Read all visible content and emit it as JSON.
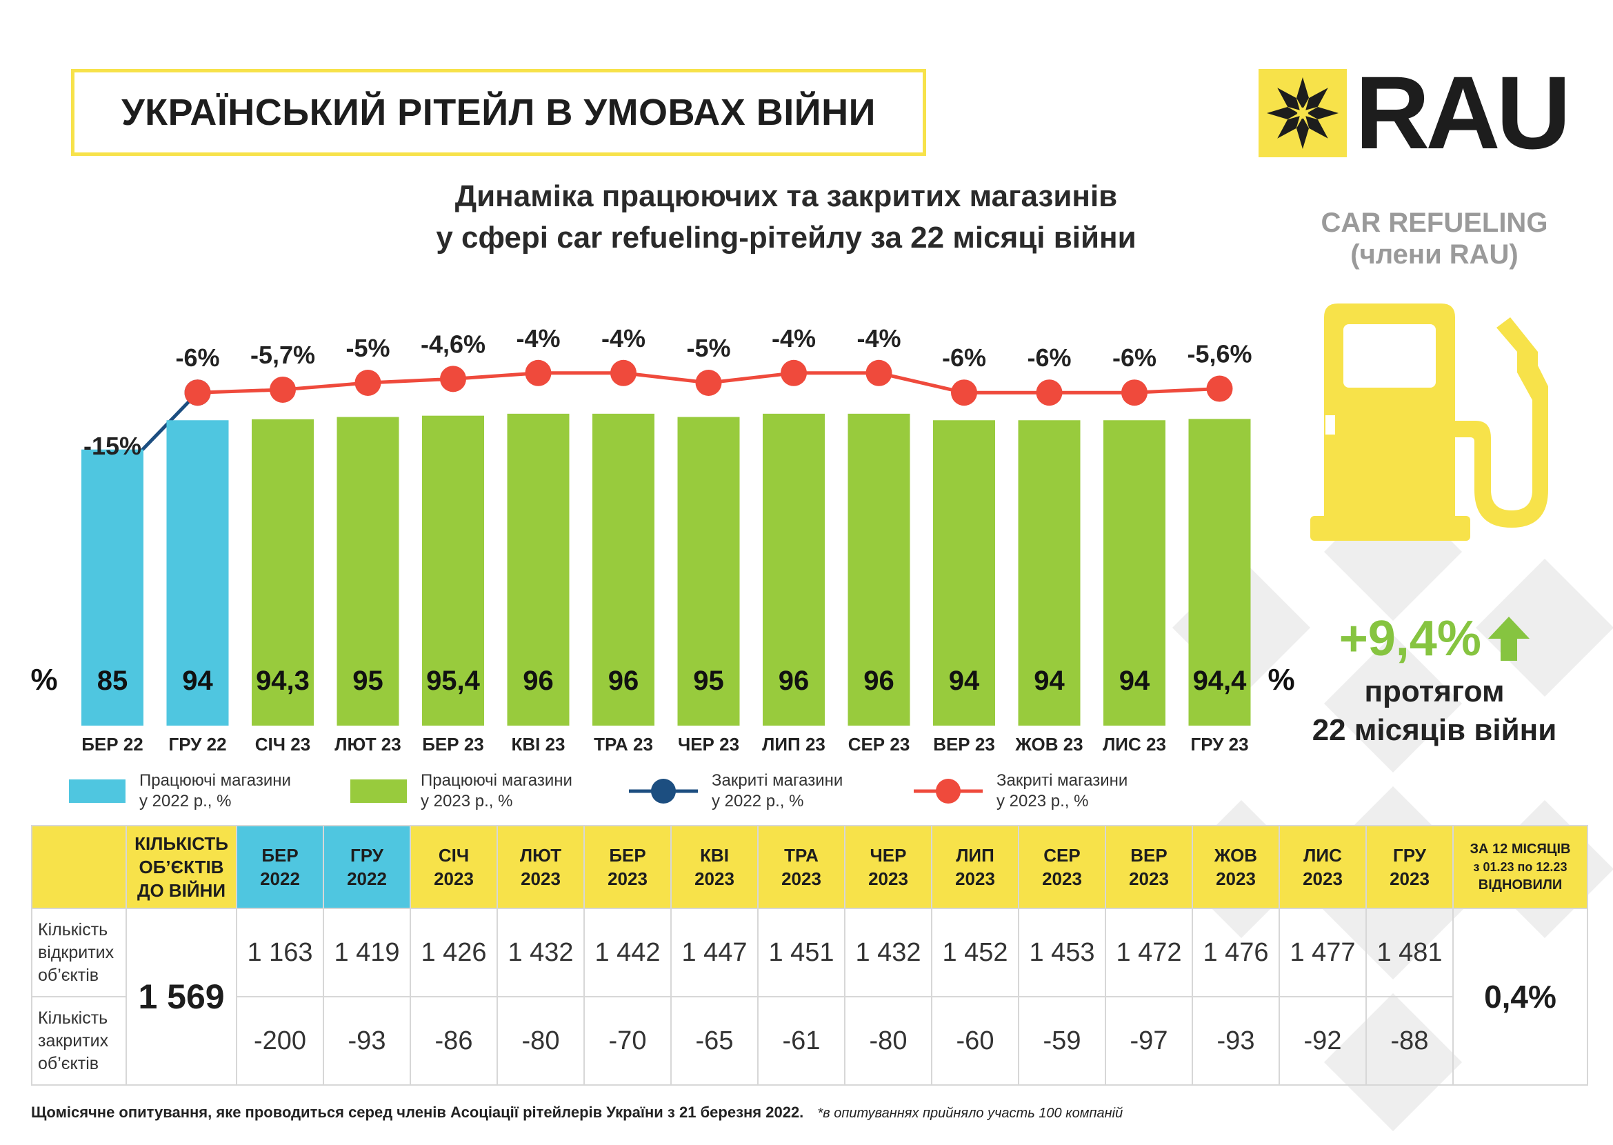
{
  "header": {
    "title": "УКРАЇНСЬКИЙ РІТЕЙЛ В УМОВАХ ВІЙНИ",
    "logo_text": "RAU"
  },
  "subtitle_line1": "Динаміка працюючих та закритих магазинів",
  "subtitle_line2": "у сфері car refueling-рітейлу за 22 місяці війни",
  "segment": {
    "line1": "CAR REFUELING",
    "line2": "(члени RAU)"
  },
  "growth": {
    "value": "+9,4%",
    "caption_line1": "протягом",
    "caption_line2": "22 місяців війни"
  },
  "colors": {
    "yellow": "#f7e24a",
    "blue_bar": "#4fc6e0",
    "green_bar": "#98cb3d",
    "navy_line": "#1c4e80",
    "red_line": "#ef4a3c",
    "growth_green": "#86c440"
  },
  "chart_data": {
    "type": "bar",
    "unit_label": "%",
    "categories": [
      "БЕР 22",
      "ГРУ 22",
      "СІЧ 23",
      "ЛЮТ 23",
      "БЕР 23",
      "КВІ 23",
      "ТРА 23",
      "ЧЕР 23",
      "ЛИП 23",
      "СЕР 23",
      "ВЕР 23",
      "ЖОВ 23",
      "ЛИС 23",
      "ГРУ 23"
    ],
    "bar_labels": [
      "85",
      "94",
      "94,3",
      "95",
      "95,4",
      "96",
      "96",
      "95",
      "96",
      "96",
      "94",
      "94",
      "94",
      "94,4"
    ],
    "series": [
      {
        "name": "Працюючі магазини у 2022 р., %",
        "kind": "bar",
        "color": "#4fc6e0",
        "start": 0,
        "values": [
          85,
          94,
          null,
          null,
          null,
          null,
          null,
          null,
          null,
          null,
          null,
          null,
          null,
          null
        ]
      },
      {
        "name": "Працюючі магазини у 2023 р., %",
        "kind": "bar",
        "color": "#98cb3d",
        "start": 2,
        "values": [
          null,
          null,
          94.3,
          95,
          95.4,
          96,
          96,
          95,
          96,
          96,
          94,
          94,
          94,
          94.4
        ]
      },
      {
        "name": "Закриті магазини у 2022 р., %",
        "kind": "line",
        "color": "#1c4e80",
        "values": [
          -15,
          -6,
          null,
          null,
          null,
          null,
          null,
          null,
          null,
          null,
          null,
          null,
          null,
          null
        ]
      },
      {
        "name": "Закриті магазини у 2023 р., %",
        "kind": "line",
        "color": "#ef4a3c",
        "values": [
          null,
          -6,
          -5.7,
          -5,
          -4.6,
          -4,
          -4,
          -5,
          -4,
          -4,
          -6,
          -6,
          -6,
          -5.6
        ]
      }
    ],
    "line_labels": [
      "-15%",
      "-6%",
      "-5,7%",
      "-5%",
      "-4,6%",
      "-4%",
      "-4%",
      "-5%",
      "-4%",
      "-4%",
      "-6%",
      "-6%",
      "-6%",
      "-5,6%"
    ]
  },
  "legend": [
    {
      "label": "Працюючі магазини\nу 2022 р., %",
      "type": "bar",
      "color": "#4fc6e0"
    },
    {
      "label": "Працюючі магазини\nу 2023 р., %",
      "type": "bar",
      "color": "#98cb3d"
    },
    {
      "label": "Закриті магазини\nу 2022 р., %",
      "type": "line",
      "color": "#1c4e80"
    },
    {
      "label": "Закриті магазини\nу 2023 р., %",
      "type": "line",
      "color": "#ef4a3c"
    }
  ],
  "table": {
    "prewar_header": [
      "КІЛЬКІСТЬ",
      "ОБ’ЄКТІВ",
      "ДО ВІЙНИ"
    ],
    "months": [
      [
        "БЕР",
        "2022"
      ],
      [
        "ГРУ",
        "2022"
      ],
      [
        "СІЧ",
        "2023"
      ],
      [
        "ЛЮТ",
        "2023"
      ],
      [
        "БЕР",
        "2023"
      ],
      [
        "КВІ",
        "2023"
      ],
      [
        "ТРА",
        "2023"
      ],
      [
        "ЧЕР",
        "2023"
      ],
      [
        "ЛИП",
        "2023"
      ],
      [
        "СЕР",
        "2023"
      ],
      [
        "ВЕР",
        "2023"
      ],
      [
        "ЖОВ",
        "2023"
      ],
      [
        "ЛИС",
        "2023"
      ],
      [
        "ГРУ",
        "2023"
      ]
    ],
    "last_header": [
      "ЗА 12 МІСЯЦІВ",
      "з 01.23 по 12.23",
      "ВІДНОВИЛИ"
    ],
    "open_label": [
      "Кількість",
      "відкритих",
      "об’єктів"
    ],
    "closed_label": [
      "Кількість",
      "закритих",
      "об’єктів"
    ],
    "prewar_value": "1 569",
    "open_values": [
      "1 163",
      "1 419",
      "1 426",
      "1 432",
      "1 442",
      "1 447",
      "1 451",
      "1 432",
      "1 452",
      "1 453",
      "1 472",
      "1 476",
      "1 477",
      "1 481"
    ],
    "closed_values": [
      "-200",
      "-93",
      "-86",
      "-80",
      "-70",
      "-65",
      "-61",
      "-80",
      "-60",
      "-59",
      "-97",
      "-93",
      "-92",
      "-88"
    ],
    "restored_value": "0,4%"
  },
  "footer": {
    "main": "Щомісячне опитування, яке проводиться серед членів Асоціації рітейлерів України з 21 березня 2022.",
    "note": "*в опитуваннях прийняло участь 100 компаній"
  }
}
